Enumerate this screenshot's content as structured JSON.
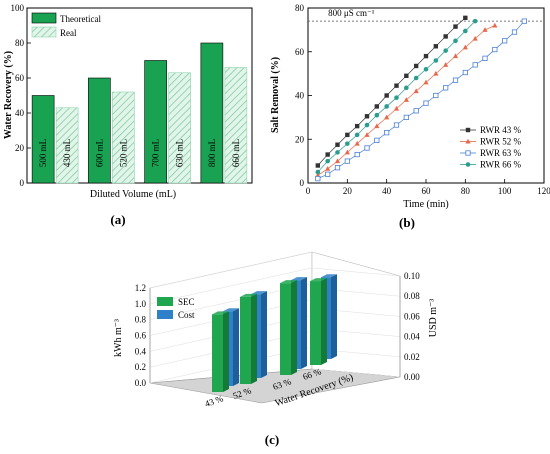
{
  "chart_data": [
    {
      "panel": "(a)",
      "type": "bar",
      "xlabel": "Diluted Volume (mL)",
      "ylabel": "Water Recovery (%)",
      "ylim": [
        0,
        100
      ],
      "yticks": [
        "0",
        "20",
        "40",
        "60",
        "80",
        "100"
      ],
      "legend": {
        "position": "top-left",
        "entries": [
          "Theoretical",
          "Real"
        ]
      },
      "series": [
        {
          "name": "Theoretical",
          "color": "#1aa253",
          "values": [
            50,
            60,
            70,
            80
          ],
          "labels": [
            "500 mL",
            "600 mL",
            "700 mL",
            "800 mL"
          ]
        },
        {
          "name": "Real",
          "color": "#c9ecd7",
          "values": [
            43,
            52,
            63,
            66
          ],
          "labels": [
            "430 mL",
            "520 mL",
            "630 mL",
            "660 mL"
          ]
        }
      ]
    },
    {
      "panel": "(b)",
      "type": "line",
      "xlabel": "Time (min)",
      "ylabel": "Salt Removal (%)",
      "xlim": [
        0,
        120
      ],
      "ylim": [
        0,
        80
      ],
      "xticks": [
        "0",
        "20",
        "40",
        "60",
        "80",
        "100",
        "120"
      ],
      "yticks": [
        "0",
        "20",
        "40",
        "60",
        "80"
      ],
      "threshold": {
        "label": "800 μS cm⁻¹",
        "y": 74
      },
      "legend": {
        "position": "bottom-right"
      },
      "series": [
        {
          "name": "RWR 43 %",
          "marker": "filled-square",
          "color": "#333333",
          "x": [
            5,
            10,
            15,
            20,
            25,
            30,
            35,
            40,
            45,
            50,
            55,
            60,
            65,
            70,
            75,
            80
          ],
          "y": [
            8,
            13,
            17.5,
            22,
            26,
            30.5,
            35,
            40,
            44.5,
            49,
            53.5,
            58,
            62.5,
            67,
            71.5,
            75.5
          ]
        },
        {
          "name": "RWR 52 %",
          "marker": "triangle",
          "color": "#e8694a",
          "x": [
            5,
            10,
            15,
            20,
            25,
            30,
            35,
            40,
            45,
            50,
            55,
            60,
            65,
            70,
            75,
            80,
            85,
            90,
            95
          ],
          "y": [
            3.5,
            6.5,
            10,
            14,
            18,
            22,
            26,
            30,
            34,
            38,
            42,
            46,
            50,
            54,
            58,
            62,
            66,
            70,
            72
          ]
        },
        {
          "name": "RWR 63 %",
          "marker": "open-square",
          "color": "#4a7fd4",
          "x": [
            5,
            10,
            15,
            20,
            25,
            30,
            35,
            40,
            45,
            50,
            55,
            60,
            65,
            70,
            75,
            80,
            85,
            90,
            95,
            100,
            105,
            110
          ],
          "y": [
            2,
            4,
            7,
            10,
            13,
            16,
            19.5,
            23,
            26.5,
            30,
            33,
            36.5,
            40,
            43.5,
            47,
            50.5,
            54,
            57,
            61,
            65,
            69,
            74
          ]
        },
        {
          "name": "RWR 66 %",
          "marker": "filled-circle",
          "color": "#2a9d8f",
          "x": [
            5,
            10,
            15,
            20,
            25,
            30,
            35,
            40,
            45,
            50,
            55,
            60,
            65,
            70,
            75,
            80,
            85
          ],
          "y": [
            5,
            10,
            14,
            18,
            22,
            26.5,
            31,
            35,
            39,
            43.5,
            48,
            52,
            56,
            60.5,
            65,
            69.5,
            74
          ]
        }
      ]
    },
    {
      "panel": "(c)",
      "type": "bar",
      "xlabel": "Water Recovery (%)",
      "ylabel": "kWh m⁻³",
      "y2label": "USD m⁻³",
      "categories": [
        "43 %",
        "52 %",
        "63 %",
        "66 %"
      ],
      "ylim": [
        0,
        1.2
      ],
      "yticks": [
        "0.0",
        "0.2",
        "0.4",
        "0.6",
        "0.8",
        "1.0",
        "1.2"
      ],
      "y2lim": [
        0,
        0.1
      ],
      "y2ticks": [
        "0.00",
        "0.02",
        "0.04",
        "0.06",
        "0.08",
        "0.10"
      ],
      "legend": {
        "position": "top-left",
        "entries": [
          "SEC",
          "Cost"
        ]
      },
      "series": [
        {
          "name": "SEC",
          "color": "#1fa64f",
          "values": [
            0.98,
            1.1,
            1.16,
            1.06
          ]
        },
        {
          "name": "Cost",
          "color": "#2e80c8",
          "values": [
            0.074,
            0.083,
            0.088,
            0.081
          ]
        }
      ]
    }
  ]
}
